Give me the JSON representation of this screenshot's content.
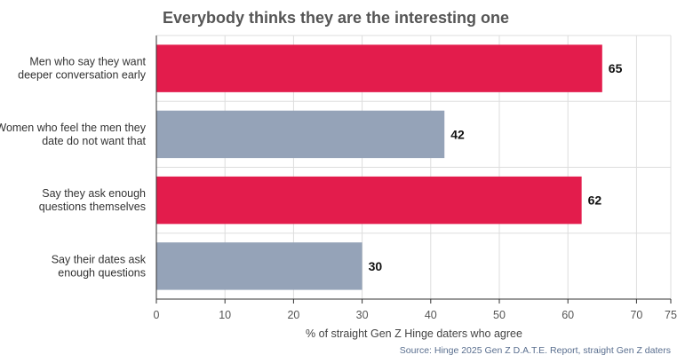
{
  "chart_data": {
    "type": "bar",
    "orientation": "horizontal",
    "title": "Everybody thinks they are the interesting one",
    "categories": [
      [
        "Men who say they want",
        "deeper conversation early"
      ],
      [
        "Women who feel the men they",
        "date do not want that"
      ],
      [
        "Say they ask enough",
        "questions themselves"
      ],
      [
        "Say their dates ask",
        "enough questions"
      ]
    ],
    "values": [
      65,
      42,
      62,
      30
    ],
    "value_labels": [
      "65",
      "42",
      "62",
      "30"
    ],
    "bar_colors": [
      "#e31c4c",
      "#95a3b8",
      "#e31c4c",
      "#95a3b8"
    ],
    "xlim": [
      0,
      75
    ],
    "xticks": [
      0,
      10,
      20,
      30,
      40,
      50,
      60,
      70,
      75
    ],
    "xtick_labels": [
      "0",
      "10",
      "20",
      "30",
      "40",
      "50",
      "60",
      "70",
      "75"
    ],
    "xlabel": "% of straight Gen Z Hinge daters who agree",
    "ylabel": "",
    "grid": true,
    "legend": "none",
    "source": "Source: Hinge 2025 Gen Z D.A.T.E. Report, straight Gen Z daters"
  }
}
